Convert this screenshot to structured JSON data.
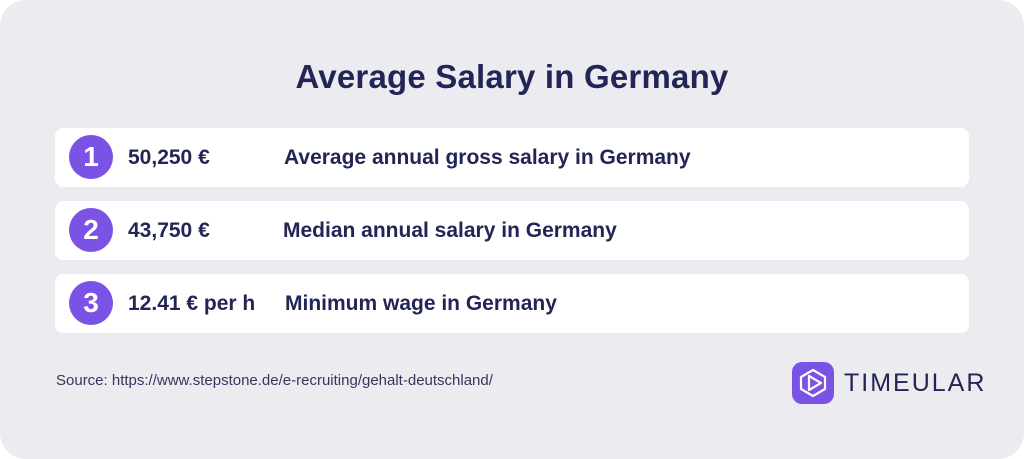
{
  "title": "Average Salary in Germany",
  "colors": {
    "background": "#ebebf0",
    "row_background": "#ffffff",
    "accent": "#7a52e6",
    "text": "#222556"
  },
  "rows": [
    {
      "number": "1",
      "value": "50,250 €",
      "description": "Average annual gross salary in Germany"
    },
    {
      "number": "2",
      "value": "43,750 €",
      "description": "Median annual salary in Germany"
    },
    {
      "number": "3",
      "value": "12.41 € per h",
      "description": "Minimum wage in Germany"
    }
  ],
  "source": "Source: https://www.stepstone.de/e-recruiting/gehalt-deutschland/",
  "logo": {
    "icon": "timeular-logo-icon",
    "text": "TIMEULAR"
  }
}
